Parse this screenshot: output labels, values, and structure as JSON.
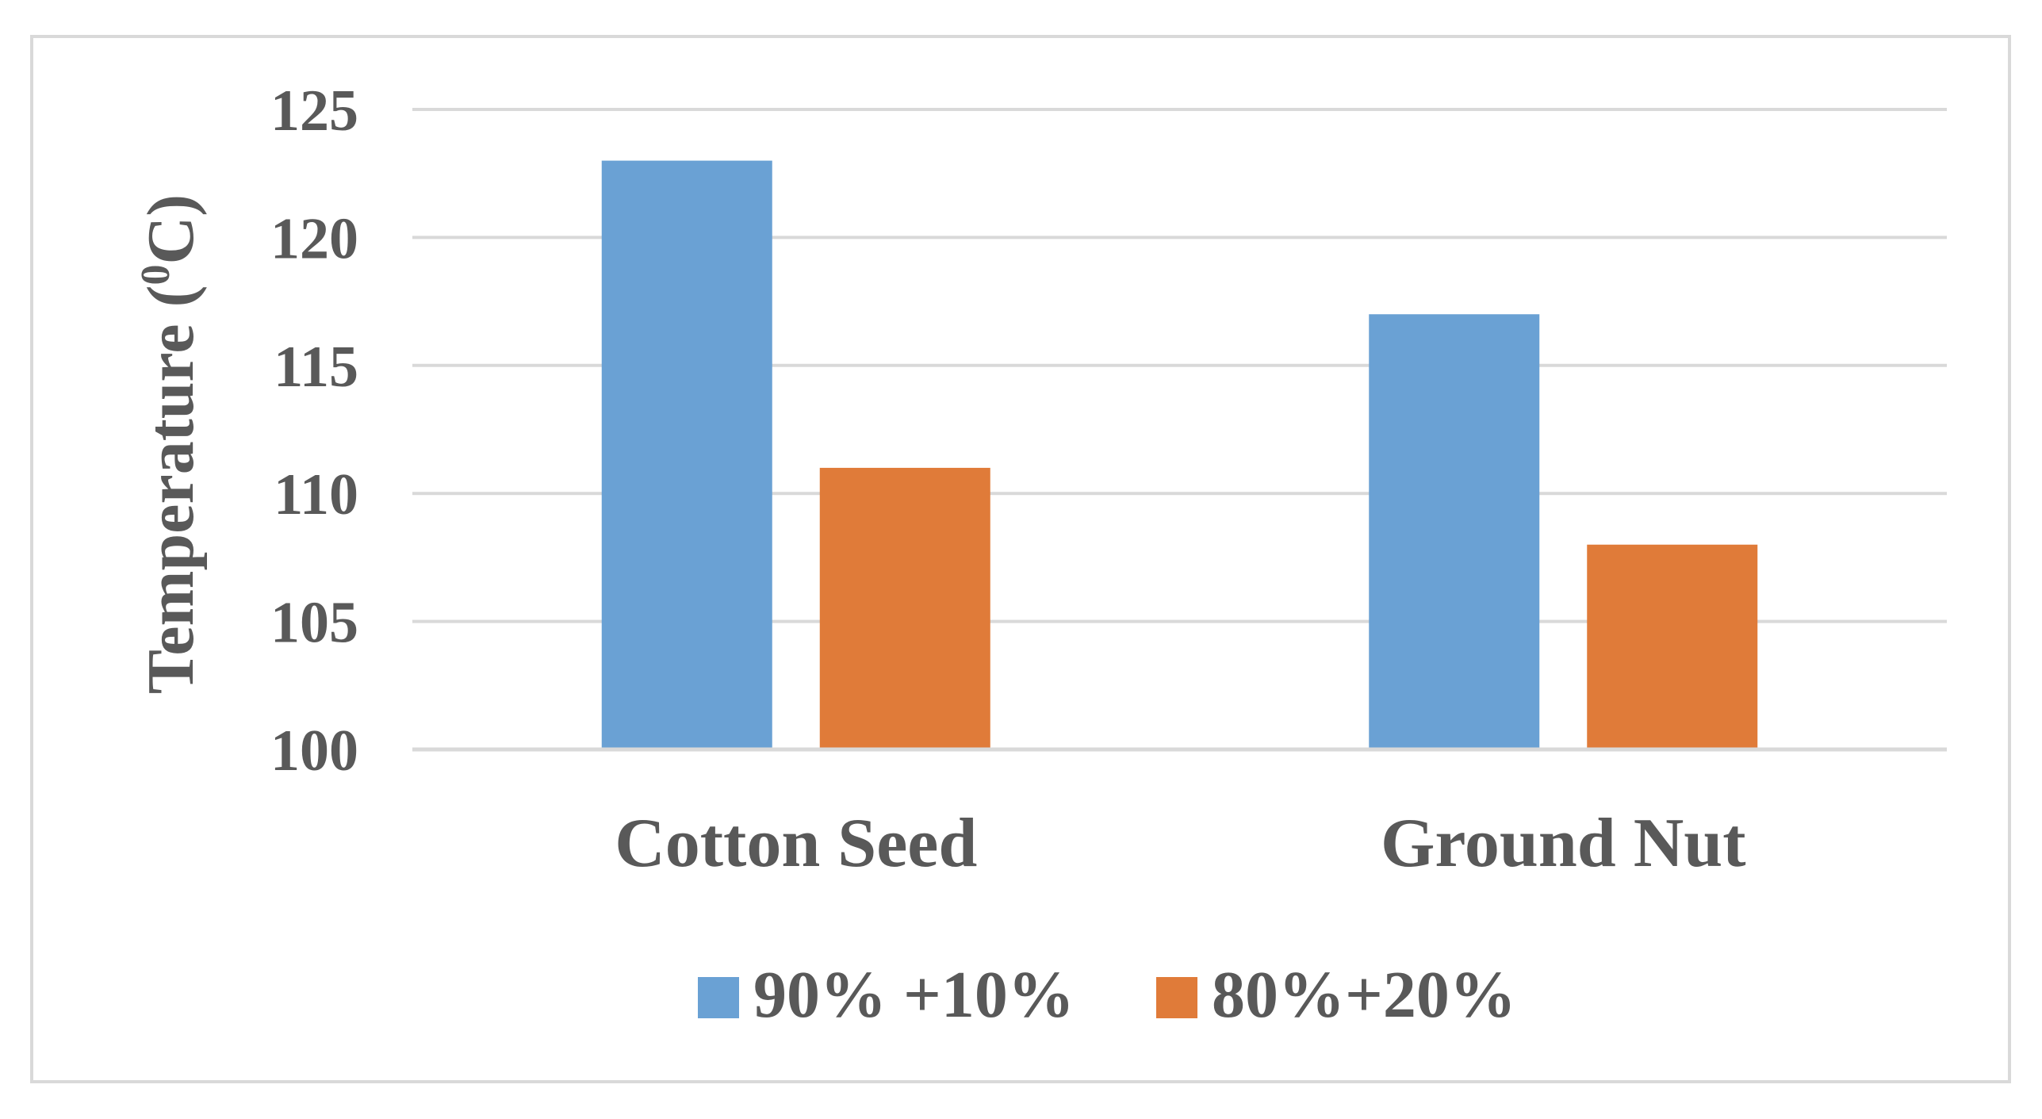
{
  "chart_data": {
    "type": "bar",
    "title": "",
    "xlabel": "",
    "ylabel": "Temperature (°C)",
    "ylabel_parts": {
      "prefix": "Temperature (",
      "superscript": "0",
      "suffix": "C)"
    },
    "categories": [
      "Cotton Seed",
      "Ground Nut"
    ],
    "series": [
      {
        "name": "90% +10%",
        "values": [
          123,
          117
        ],
        "color": "#6aa1d4"
      },
      {
        "name": "80%+20%",
        "values": [
          111,
          108
        ],
        "color": "#e07b39"
      }
    ],
    "ylim": [
      100,
      125
    ],
    "yticks": [
      100,
      105,
      110,
      115,
      120,
      125
    ],
    "grid": true,
    "legend_position": "bottom"
  }
}
